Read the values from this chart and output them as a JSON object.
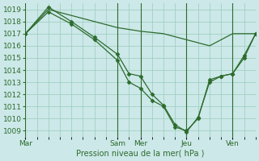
{
  "background_color": "#cce8e8",
  "grid_color": "#99ccbb",
  "line_color": "#2d6b2d",
  "marker_color": "#2d6b2d",
  "xlabel_label": "Pression niveau de la mer( hPa )",
  "ylim": [
    1008.5,
    1019.5
  ],
  "yticks": [
    1009,
    1010,
    1011,
    1012,
    1013,
    1014,
    1015,
    1016,
    1017,
    1018,
    1019
  ],
  "day_labels": [
    "Mar",
    "Sam",
    "Mer",
    "Jeu",
    "Ven"
  ],
  "day_x": [
    0,
    12,
    15,
    21,
    27
  ],
  "xlim": [
    0,
    30
  ],
  "vlines": [
    0,
    12,
    15,
    21,
    27
  ],
  "smooth_line": {
    "x": [
      0,
      3,
      6,
      9,
      12,
      15,
      18,
      21,
      24,
      27,
      30
    ],
    "y": [
      1017.0,
      1019.0,
      1018.5,
      1018.0,
      1017.5,
      1017.2,
      1017.0,
      1016.5,
      1016.0,
      1017.0,
      1017.0
    ]
  },
  "jagged_line": {
    "x": [
      0,
      3,
      6,
      9,
      12,
      13.5,
      15,
      16.5,
      18,
      19.5,
      21,
      22.5,
      24,
      25.5,
      27,
      28.5,
      30
    ],
    "y": [
      1017.0,
      1018.8,
      1017.8,
      1016.5,
      1014.8,
      1013.0,
      1012.5,
      1011.5,
      1011.0,
      1009.3,
      1009.0,
      1010.0,
      1013.2,
      1013.5,
      1013.7,
      1015.0,
      1017.0
    ]
  },
  "jagged_line2": {
    "x": [
      0,
      3,
      6,
      9,
      12,
      13.5,
      15,
      16.5,
      18,
      19.5,
      21,
      22.5,
      24,
      25.5,
      27,
      28.5,
      30
    ],
    "y": [
      1017.0,
      1019.2,
      1018.0,
      1016.7,
      1015.3,
      1013.7,
      1013.5,
      1012.0,
      1011.1,
      1009.5,
      1008.9,
      1010.1,
      1013.0,
      1013.5,
      1013.7,
      1015.2,
      1017.0
    ]
  }
}
